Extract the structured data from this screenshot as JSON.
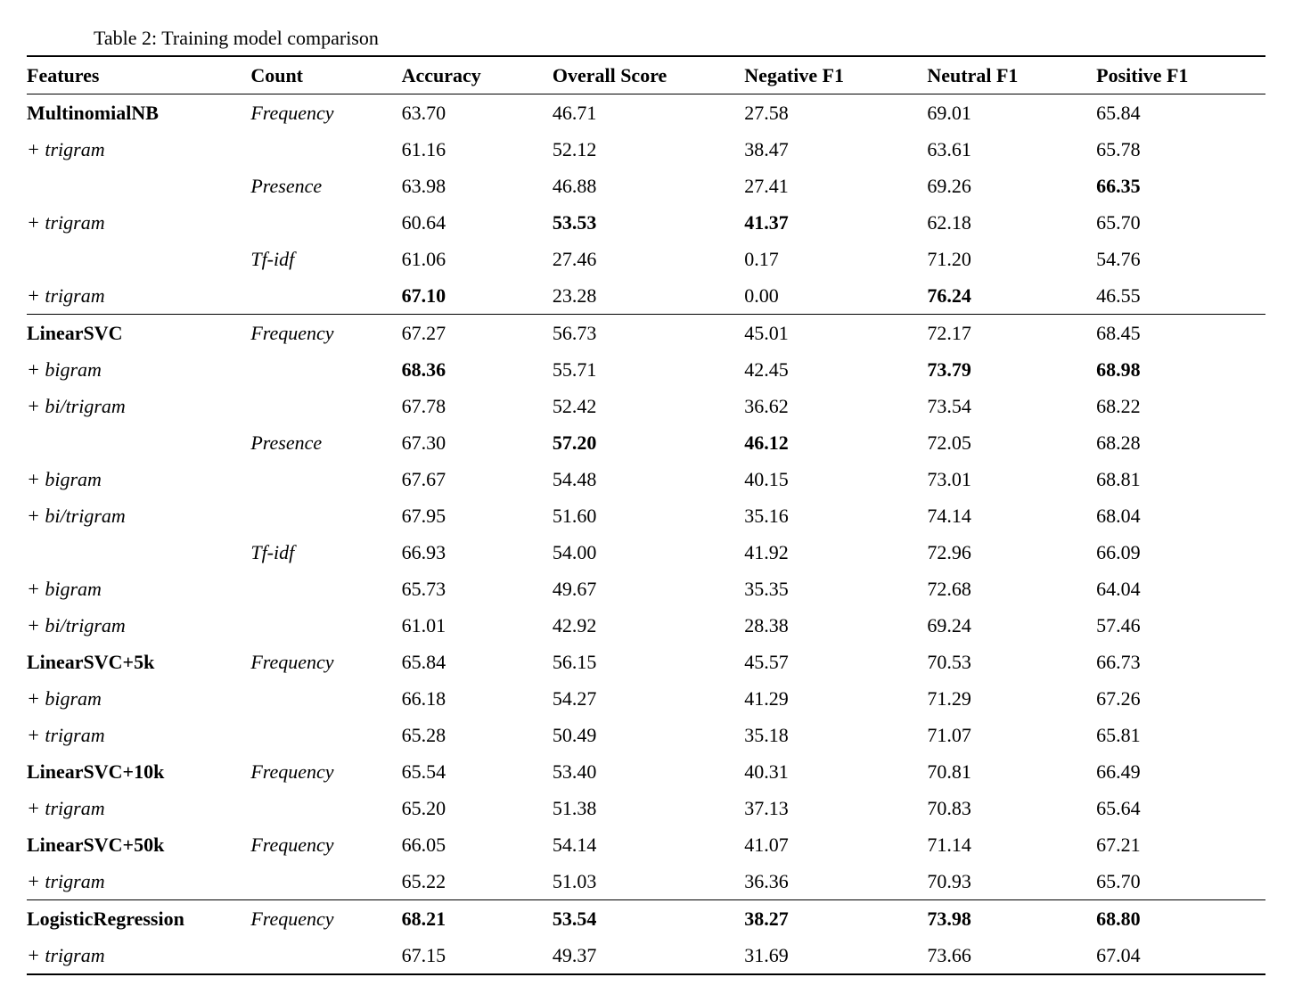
{
  "caption": "Table 2: Training model comparison",
  "columns": [
    "Features",
    "Count",
    "Accuracy",
    "Overall Score",
    "Negative F1",
    "Neutral F1",
    "Positive F1"
  ],
  "sections": [
    {
      "rows": [
        {
          "feature": {
            "text": "MultinomialNB",
            "bold": true
          },
          "count": {
            "text": "Frequency",
            "italic": true
          },
          "cells": [
            {
              "v": "63.70"
            },
            {
              "v": "46.71"
            },
            {
              "v": "27.58"
            },
            {
              "v": "69.01"
            },
            {
              "v": "65.84"
            }
          ]
        },
        {
          "feature": {
            "text": "+ trigram",
            "italic": true
          },
          "count": {
            "text": ""
          },
          "cells": [
            {
              "v": "61.16"
            },
            {
              "v": "52.12"
            },
            {
              "v": "38.47"
            },
            {
              "v": "63.61"
            },
            {
              "v": "65.78"
            }
          ]
        },
        {
          "feature": {
            "text": ""
          },
          "count": {
            "text": "Presence",
            "italic": true
          },
          "cells": [
            {
              "v": "63.98"
            },
            {
              "v": "46.88"
            },
            {
              "v": "27.41"
            },
            {
              "v": "69.26"
            },
            {
              "v": "66.35",
              "bold": true
            }
          ]
        },
        {
          "feature": {
            "text": "+ trigram",
            "italic": true
          },
          "count": {
            "text": ""
          },
          "cells": [
            {
              "v": "60.64"
            },
            {
              "v": "53.53",
              "bold": true
            },
            {
              "v": "41.37",
              "bold": true
            },
            {
              "v": "62.18"
            },
            {
              "v": "65.70"
            }
          ]
        },
        {
          "feature": {
            "text": ""
          },
          "count": {
            "text": "Tf-idf",
            "italic": true
          },
          "cells": [
            {
              "v": "61.06"
            },
            {
              "v": "27.46"
            },
            {
              "v": "0.17"
            },
            {
              "v": "71.20"
            },
            {
              "v": "54.76"
            }
          ]
        },
        {
          "feature": {
            "text": "+ trigram",
            "italic": true
          },
          "count": {
            "text": ""
          },
          "cells": [
            {
              "v": "67.10",
              "bold": true
            },
            {
              "v": "23.28"
            },
            {
              "v": "0.00"
            },
            {
              "v": "76.24",
              "bold": true
            },
            {
              "v": "46.55"
            }
          ]
        }
      ]
    },
    {
      "rows": [
        {
          "feature": {
            "text": "LinearSVC",
            "bold": true
          },
          "count": {
            "text": "Frequency",
            "italic": true
          },
          "cells": [
            {
              "v": "67.27"
            },
            {
              "v": "56.73"
            },
            {
              "v": "45.01"
            },
            {
              "v": "72.17"
            },
            {
              "v": "68.45"
            }
          ]
        },
        {
          "feature": {
            "text": "+ bigram",
            "italic": true
          },
          "count": {
            "text": ""
          },
          "cells": [
            {
              "v": "68.36",
              "bold": true
            },
            {
              "v": "55.71"
            },
            {
              "v": "42.45"
            },
            {
              "v": "73.79",
              "bold": true
            },
            {
              "v": "68.98",
              "bold": true
            }
          ]
        },
        {
          "feature": {
            "text": "+ bi/trigram",
            "italic": true
          },
          "count": {
            "text": ""
          },
          "cells": [
            {
              "v": "67.78"
            },
            {
              "v": "52.42"
            },
            {
              "v": "36.62"
            },
            {
              "v": "73.54"
            },
            {
              "v": "68.22"
            }
          ]
        },
        {
          "feature": {
            "text": ""
          },
          "count": {
            "text": "Presence",
            "italic": true
          },
          "cells": [
            {
              "v": "67.30"
            },
            {
              "v": "57.20",
              "bold": true
            },
            {
              "v": "46.12",
              "bold": true
            },
            {
              "v": "72.05"
            },
            {
              "v": "68.28"
            }
          ]
        },
        {
          "feature": {
            "text": "+ bigram",
            "italic": true
          },
          "count": {
            "text": ""
          },
          "cells": [
            {
              "v": "67.67"
            },
            {
              "v": "54.48"
            },
            {
              "v": "40.15"
            },
            {
              "v": "73.01"
            },
            {
              "v": "68.81"
            }
          ]
        },
        {
          "feature": {
            "text": "+ bi/trigram",
            "italic": true
          },
          "count": {
            "text": ""
          },
          "cells": [
            {
              "v": "67.95"
            },
            {
              "v": "51.60"
            },
            {
              "v": "35.16"
            },
            {
              "v": "74.14"
            },
            {
              "v": "68.04"
            }
          ]
        },
        {
          "feature": {
            "text": ""
          },
          "count": {
            "text": "Tf-idf",
            "italic": true
          },
          "cells": [
            {
              "v": "66.93"
            },
            {
              "v": "54.00"
            },
            {
              "v": "41.92"
            },
            {
              "v": "72.96"
            },
            {
              "v": "66.09"
            }
          ]
        },
        {
          "feature": {
            "text": "+ bigram",
            "italic": true
          },
          "count": {
            "text": ""
          },
          "cells": [
            {
              "v": "65.73"
            },
            {
              "v": "49.67"
            },
            {
              "v": "35.35"
            },
            {
              "v": "72.68"
            },
            {
              "v": "64.04"
            }
          ]
        },
        {
          "feature": {
            "text": "+ bi/trigram",
            "italic": true
          },
          "count": {
            "text": ""
          },
          "cells": [
            {
              "v": "61.01"
            },
            {
              "v": "42.92"
            },
            {
              "v": "28.38"
            },
            {
              "v": "69.24"
            },
            {
              "v": "57.46"
            }
          ]
        },
        {
          "feature": {
            "text": "LinearSVC+5k",
            "bold": true
          },
          "count": {
            "text": "Frequency",
            "italic": true
          },
          "cells": [
            {
              "v": "65.84"
            },
            {
              "v": "56.15"
            },
            {
              "v": "45.57"
            },
            {
              "v": "70.53"
            },
            {
              "v": "66.73"
            }
          ]
        },
        {
          "feature": {
            "text": "+ bigram",
            "italic": true
          },
          "count": {
            "text": ""
          },
          "cells": [
            {
              "v": "66.18"
            },
            {
              "v": "54.27"
            },
            {
              "v": "41.29"
            },
            {
              "v": "71.29"
            },
            {
              "v": "67.26"
            }
          ]
        },
        {
          "feature": {
            "text": "+ trigram",
            "italic": true
          },
          "count": {
            "text": ""
          },
          "cells": [
            {
              "v": "65.28"
            },
            {
              "v": "50.49"
            },
            {
              "v": "35.18"
            },
            {
              "v": "71.07"
            },
            {
              "v": "65.81"
            }
          ]
        },
        {
          "feature": {
            "text": "LinearSVC+10k",
            "bold": true
          },
          "count": {
            "text": "Frequency",
            "italic": true
          },
          "cells": [
            {
              "v": "65.54"
            },
            {
              "v": "53.40"
            },
            {
              "v": "40.31"
            },
            {
              "v": "70.81"
            },
            {
              "v": "66.49"
            }
          ]
        },
        {
          "feature": {
            "text": "+ trigram",
            "italic": true
          },
          "count": {
            "text": ""
          },
          "cells": [
            {
              "v": "65.20"
            },
            {
              "v": "51.38"
            },
            {
              "v": "37.13"
            },
            {
              "v": "70.83"
            },
            {
              "v": "65.64"
            }
          ]
        },
        {
          "feature": {
            "text": "LinearSVC+50k",
            "bold": true
          },
          "count": {
            "text": "Frequency",
            "italic": true
          },
          "cells": [
            {
              "v": "66.05"
            },
            {
              "v": "54.14"
            },
            {
              "v": "41.07"
            },
            {
              "v": "71.14"
            },
            {
              "v": "67.21"
            }
          ]
        },
        {
          "feature": {
            "text": "+ trigram",
            "italic": true
          },
          "count": {
            "text": ""
          },
          "cells": [
            {
              "v": "65.22"
            },
            {
              "v": "51.03"
            },
            {
              "v": "36.36"
            },
            {
              "v": "70.93"
            },
            {
              "v": "65.70"
            }
          ]
        }
      ]
    },
    {
      "rows": [
        {
          "feature": {
            "text": "LogisticRegression",
            "bold": true
          },
          "count": {
            "text": "Frequency",
            "italic": true
          },
          "cells": [
            {
              "v": "68.21",
              "bold": true
            },
            {
              "v": "53.54",
              "bold": true
            },
            {
              "v": "38.27",
              "bold": true
            },
            {
              "v": "73.98",
              "bold": true
            },
            {
              "v": "68.80",
              "bold": true
            }
          ]
        },
        {
          "feature": {
            "text": "+ trigram",
            "italic": true
          },
          "count": {
            "text": ""
          },
          "cells": [
            {
              "v": "67.15"
            },
            {
              "v": "49.37"
            },
            {
              "v": "31.69"
            },
            {
              "v": "73.66"
            },
            {
              "v": "67.04"
            }
          ]
        }
      ]
    }
  ]
}
